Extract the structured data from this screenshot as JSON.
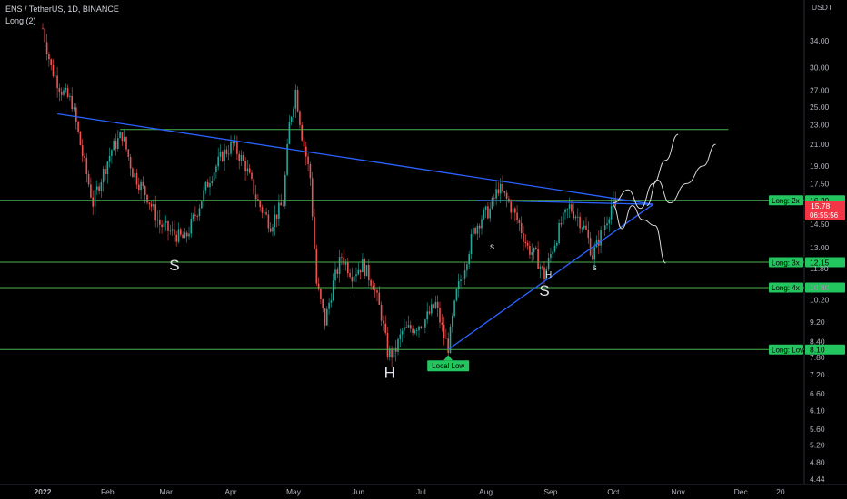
{
  "header": {
    "symbol_line": "ENS / TetherUS, 1D, BINANCE",
    "indicator": "Long (2)"
  },
  "colors": {
    "background": "#000000",
    "up": "#26a69a",
    "down": "#ef5350",
    "level_line": "#4caf50",
    "trendline": "#2962ff",
    "projection": "#d9d9d9",
    "price_tag": "#f23645",
    "level_tag": "#22c55e"
  },
  "chart_data": {
    "type": "candlestick",
    "currency": "USDT",
    "y_scale": "log",
    "ylim": [
      4.4,
      36.5
    ],
    "y_ticks": [
      34.0,
      30.0,
      27.0,
      25.0,
      23.0,
      21.0,
      19.0,
      17.5,
      16.0,
      14.5,
      13.0,
      11.8,
      10.8,
      10.2,
      9.2,
      8.4,
      7.8,
      7.2,
      6.6,
      6.1,
      5.6,
      5.2,
      4.8,
      4.44
    ],
    "y_tick_labels": [
      "34.00",
      "30.00",
      "27.00",
      "25.00",
      "23.00",
      "21.00",
      "19.00",
      "17.50",
      "16.00",
      "14.50",
      "13.00",
      "11.80",
      "10.80",
      "10.20",
      "9.20",
      "8.40",
      "7.80",
      "7.20",
      "6.60",
      "6.10",
      "5.60",
      "5.20",
      "4.80",
      "4.44"
    ],
    "x_labels": [
      {
        "label": "2022",
        "date": "2022-01-01",
        "bold": true
      },
      {
        "label": "Feb",
        "date": "2022-02-01"
      },
      {
        "label": "Mar",
        "date": "2022-03-01"
      },
      {
        "label": "Apr",
        "date": "2022-04-01"
      },
      {
        "label": "May",
        "date": "2022-05-01"
      },
      {
        "label": "Jun",
        "date": "2022-06-01"
      },
      {
        "label": "Jul",
        "date": "2022-07-01"
      },
      {
        "label": "Aug",
        "date": "2022-08-01"
      },
      {
        "label": "Sep",
        "date": "2022-09-01"
      },
      {
        "label": "Oct",
        "date": "2022-10-01"
      },
      {
        "label": "Nov",
        "date": "2022-11-01"
      },
      {
        "label": "Dec",
        "date": "2022-12-01"
      },
      {
        "label": "20",
        "date": "2022-12-20"
      }
    ],
    "price_path": [
      [
        "2022-01-01",
        36.0
      ],
      [
        "2022-01-05",
        30.0
      ],
      [
        "2022-01-10",
        27.0
      ],
      [
        "2022-01-15",
        25.5
      ],
      [
        "2022-01-20",
        20.0
      ],
      [
        "2022-01-25",
        16.0
      ],
      [
        "2022-01-28",
        17.5
      ],
      [
        "2022-02-03",
        20.5
      ],
      [
        "2022-02-08",
        22.0
      ],
      [
        "2022-02-13",
        18.5
      ],
      [
        "2022-02-20",
        16.5
      ],
      [
        "2022-02-26",
        14.5
      ],
      [
        "2022-03-03",
        14.0
      ],
      [
        "2022-03-10",
        13.5
      ],
      [
        "2022-03-16",
        15.5
      ],
      [
        "2022-03-22",
        18.0
      ],
      [
        "2022-03-28",
        20.0
      ],
      [
        "2022-04-02",
        21.0
      ],
      [
        "2022-04-08",
        19.0
      ],
      [
        "2022-04-14",
        16.0
      ],
      [
        "2022-04-20",
        14.5
      ],
      [
        "2022-04-26",
        16.0
      ],
      [
        "2022-04-29",
        23.0
      ],
      [
        "2022-05-02",
        27.0
      ],
      [
        "2022-05-05",
        22.0
      ],
      [
        "2022-05-09",
        18.0
      ],
      [
        "2022-05-12",
        11.0
      ],
      [
        "2022-05-16",
        9.2
      ],
      [
        "2022-05-20",
        11.0
      ],
      [
        "2022-05-24",
        12.5
      ],
      [
        "2022-05-29",
        11.5
      ],
      [
        "2022-06-03",
        12.0
      ],
      [
        "2022-06-08",
        11.0
      ],
      [
        "2022-06-12",
        9.5
      ],
      [
        "2022-06-15",
        8.0
      ],
      [
        "2022-06-18",
        7.9
      ],
      [
        "2022-06-22",
        8.8
      ],
      [
        "2022-06-28",
        9.0
      ],
      [
        "2022-07-03",
        9.3
      ],
      [
        "2022-07-08",
        10.0
      ],
      [
        "2022-07-12",
        8.6
      ],
      [
        "2022-07-14",
        8.2
      ],
      [
        "2022-07-18",
        10.5
      ],
      [
        "2022-07-22",
        12.0
      ],
      [
        "2022-07-26",
        14.0
      ],
      [
        "2022-07-30",
        15.0
      ],
      [
        "2022-08-03",
        15.5
      ],
      [
        "2022-08-07",
        17.2
      ],
      [
        "2022-08-12",
        16.0
      ],
      [
        "2022-08-17",
        14.5
      ],
      [
        "2022-08-21",
        13.0
      ],
      [
        "2022-08-25",
        12.5
      ],
      [
        "2022-08-29",
        11.4
      ],
      [
        "2022-09-02",
        13.0
      ],
      [
        "2022-09-06",
        14.5
      ],
      [
        "2022-09-10",
        15.7
      ],
      [
        "2022-09-14",
        15.0
      ],
      [
        "2022-09-18",
        14.0
      ],
      [
        "2022-09-21",
        12.5
      ],
      [
        "2022-09-24",
        13.5
      ],
      [
        "2022-09-27",
        14.5
      ],
      [
        "2022-09-30",
        15.8
      ],
      [
        "2022-10-02",
        15.78
      ]
    ],
    "horizontal_levels": [
      {
        "name": "top",
        "value": 22.5,
        "from": "2022-02-07",
        "to": "2022-11-25"
      },
      {
        "name": "long-2x",
        "value": 16.2,
        "label": "Long: 2x",
        "price": "16.20"
      },
      {
        "name": "long-3x",
        "value": 12.15,
        "label": "Long: 3x",
        "price": "12.15"
      },
      {
        "name": "long-4x",
        "value": 10.8,
        "label": "Long: 4x",
        "price": "10.80"
      },
      {
        "name": "long-low",
        "value": 8.1,
        "label": "Long: Low",
        "price": "8.10"
      }
    ],
    "trendlines": [
      {
        "name": "descending-resistance",
        "points": [
          [
            "2022-01-08",
            24.2
          ],
          [
            "2022-10-20",
            15.9
          ]
        ]
      },
      {
        "name": "neckline",
        "points": [
          [
            "2022-07-28",
            16.2
          ],
          [
            "2022-10-20",
            15.9
          ]
        ]
      },
      {
        "name": "ascending-support",
        "points": [
          [
            "2022-07-14",
            8.1
          ],
          [
            "2022-10-20",
            15.9
          ]
        ]
      }
    ],
    "projections": [
      {
        "name": "projection-1",
        "points": [
          [
            "2022-10-01",
            16.0
          ],
          [
            "2022-10-08",
            17.0
          ],
          [
            "2022-10-14",
            15.6
          ],
          [
            "2022-10-20",
            17.5
          ],
          [
            "2022-10-26",
            19.5
          ],
          [
            "2022-11-01",
            22.0
          ]
        ]
      },
      {
        "name": "projection-2",
        "points": [
          [
            "2022-10-17",
            15.8
          ],
          [
            "2022-10-22",
            17.8
          ],
          [
            "2022-10-28",
            16.0
          ],
          [
            "2022-11-05",
            17.5
          ],
          [
            "2022-11-13",
            19.0
          ],
          [
            "2022-11-19",
            21.0
          ]
        ]
      },
      {
        "name": "projection-3",
        "points": [
          [
            "2022-10-01",
            15.8
          ],
          [
            "2022-10-05",
            14.2
          ],
          [
            "2022-10-10",
            15.8
          ],
          [
            "2022-10-15",
            14.8
          ],
          [
            "2022-10-21",
            14.4
          ],
          [
            "2022-10-26",
            12.1
          ]
        ]
      }
    ],
    "pattern_labels": [
      {
        "text": "S",
        "date": "2022-03-05",
        "value": 11.7,
        "size": "large"
      },
      {
        "text": "H",
        "date": "2022-06-16",
        "value": 7.1,
        "size": "large"
      },
      {
        "text": "S",
        "date": "2022-08-29",
        "value": 10.4,
        "size": "large"
      },
      {
        "text": "s",
        "date": "2022-08-04",
        "value": 12.9,
        "size": "small"
      },
      {
        "text": "H",
        "date": "2022-08-31",
        "value": 11.3,
        "size": "small"
      },
      {
        "text": "s",
        "date": "2022-09-22",
        "value": 11.7,
        "size": "small"
      }
    ],
    "callout": {
      "text": "Local Low",
      "date": "2022-07-14",
      "value": 8.1
    },
    "current_price": {
      "price": "15.78",
      "countdown": "06:55:56",
      "value": 15.78
    }
  }
}
